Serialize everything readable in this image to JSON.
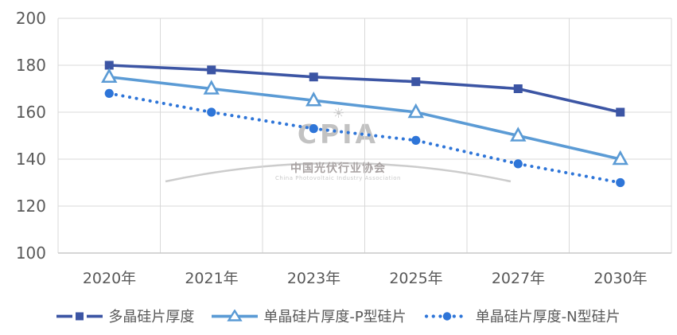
{
  "chart_data": {
    "type": "line",
    "title": "",
    "xlabel": "",
    "ylabel": "",
    "categories": [
      "2020年",
      "2021年",
      "2023年",
      "2025年",
      "2027年",
      "2030年"
    ],
    "series": [
      {
        "name": "多晶硅片厚度",
        "values": [
          180,
          178,
          175,
          173,
          170,
          160
        ],
        "color": "#3C55A4",
        "marker": "square",
        "line": "solid"
      },
      {
        "name": "单晶硅片厚度-P型硅片",
        "values": [
          175,
          170,
          165,
          160,
          150,
          140
        ],
        "color": "#5B9BD5",
        "marker": "triangle-open",
        "line": "solid"
      },
      {
        "name": "单晶硅片厚度-N型硅片",
        "values": [
          168,
          160,
          153,
          148,
          138,
          130
        ],
        "color": "#2E75D8",
        "marker": "circle",
        "line": "dotted"
      }
    ],
    "ylim": [
      100,
      200
    ],
    "yticks": [
      200,
      180,
      160,
      140,
      120,
      100
    ],
    "ytick_labels": [
      "200",
      "180",
      "160",
      "140",
      "120",
      "100"
    ],
    "grid": true,
    "gridline_color": "#d9d9d9",
    "axis_text_color": "#595959",
    "legend_position": "bottom"
  },
  "watermark": {
    "sun_icon": "☀",
    "acronym": "CPIA",
    "name_cn": "中国光伏行业协会",
    "name_en": "China Photovoltaic Industry Association"
  }
}
